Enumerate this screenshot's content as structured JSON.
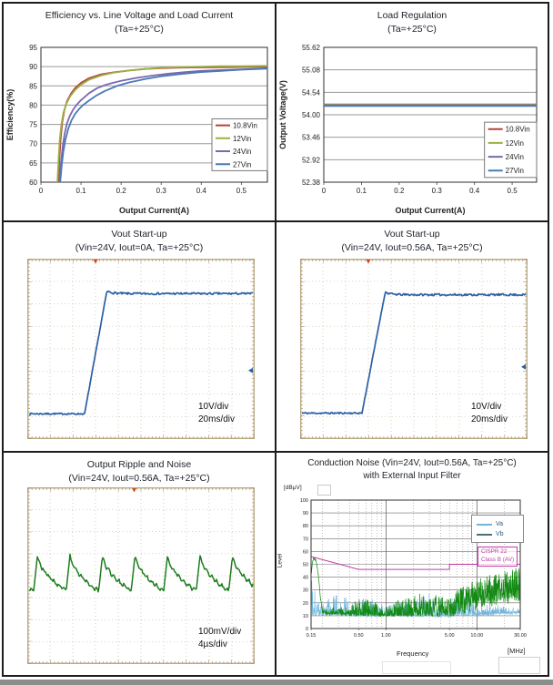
{
  "colors": {
    "red": "#b5443a",
    "olive": "#9cb043",
    "purple": "#7a68b0",
    "blue": "#4a7ab5",
    "scope_trace": "#2a5fa6",
    "ripple_green": "#1d7d1e",
    "va": "#6fb6da",
    "vb": "#138a13",
    "vb_swatch": "#4b7078",
    "limit": "#c23ba3",
    "grid": "#9a9a9a",
    "plot_border": "#2e2e2e",
    "scope_border": "#b6aa82",
    "scope_tick": "#a06a45",
    "scope_grid": "#ccc3a6",
    "trigger": "#d44a1a"
  },
  "chart_data": [
    {
      "type": "line",
      "title": "Efficiency vs. Line Voltage and Load Current",
      "subtitle": "(Ta=+25°C)",
      "xlabel": "Output Current(A)",
      "ylabel": "Efficiency(%)",
      "xlim": [
        0,
        0.565
      ],
      "ylim": [
        60,
        95
      ],
      "xticks": [
        0,
        0.1,
        0.2,
        0.3,
        0.4,
        0.5
      ],
      "xtick_labels": [
        "0",
        "0.1",
        "0.2",
        "0.3",
        "0.4",
        "0.5"
      ],
      "yticks": [
        60,
        65,
        70,
        75,
        80,
        85,
        90,
        95
      ],
      "ytick_labels": [
        "60",
        "65",
        "70",
        "75",
        "80",
        "85",
        "90",
        "95"
      ],
      "margins": {
        "l": 41,
        "r": 8,
        "t": 11,
        "b": 39
      },
      "legend_box": {
        "x": 0.755,
        "y": 0.53,
        "w": 0.245,
        "h": 0.385
      },
      "series": [
        {
          "name": "10.8Vin",
          "color_key": "red",
          "points": [
            [
              0.043,
              60
            ],
            [
              0.046,
              66
            ],
            [
              0.049,
              71
            ],
            [
              0.053,
              75.5
            ],
            [
              0.058,
              78.5
            ],
            [
              0.065,
              81
            ],
            [
              0.075,
              83
            ],
            [
              0.085,
              84.4
            ],
            [
              0.1,
              85.8
            ],
            [
              0.12,
              87
            ],
            [
              0.15,
              88
            ],
            [
              0.18,
              88.5
            ],
            [
              0.22,
              89
            ],
            [
              0.26,
              89.4
            ],
            [
              0.3,
              89.6
            ],
            [
              0.35,
              89.75
            ],
            [
              0.4,
              89.8
            ],
            [
              0.45,
              89.85
            ],
            [
              0.5,
              89.9
            ],
            [
              0.565,
              90
            ]
          ]
        },
        {
          "name": "12Vin",
          "color_key": "olive",
          "points": [
            [
              0.041,
              60
            ],
            [
              0.044,
              66
            ],
            [
              0.047,
              71
            ],
            [
              0.051,
              75
            ],
            [
              0.056,
              78
            ],
            [
              0.063,
              80.3
            ],
            [
              0.073,
              82.3
            ],
            [
              0.085,
              83.9
            ],
            [
              0.1,
              85.3
            ],
            [
              0.12,
              86.6
            ],
            [
              0.15,
              87.7
            ],
            [
              0.18,
              88.4
            ],
            [
              0.22,
              89
            ],
            [
              0.26,
              89.4
            ],
            [
              0.3,
              89.7
            ],
            [
              0.35,
              89.9
            ],
            [
              0.4,
              90
            ],
            [
              0.45,
              90.1
            ],
            [
              0.5,
              90.1
            ],
            [
              0.565,
              90.2
            ]
          ]
        },
        {
          "name": "24Vin",
          "color_key": "purple",
          "points": [
            [
              0.046,
              60
            ],
            [
              0.05,
              65
            ],
            [
              0.054,
              69
            ],
            [
              0.059,
              72.5
            ],
            [
              0.065,
              75.2
            ],
            [
              0.072,
              77.2
            ],
            [
              0.08,
              78.8
            ],
            [
              0.09,
              80.2
            ],
            [
              0.1,
              81.3
            ],
            [
              0.12,
              83.1
            ],
            [
              0.14,
              84.4
            ],
            [
              0.16,
              85.2
            ],
            [
              0.18,
              85.8
            ],
            [
              0.2,
              86.3
            ],
            [
              0.24,
              87.1
            ],
            [
              0.28,
              87.7
            ],
            [
              0.32,
              88.2
            ],
            [
              0.36,
              88.6
            ],
            [
              0.4,
              88.9
            ],
            [
              0.45,
              89.1
            ],
            [
              0.5,
              89.3
            ],
            [
              0.565,
              89.6
            ]
          ]
        },
        {
          "name": "27Vin",
          "color_key": "blue",
          "points": [
            [
              0.048,
              60
            ],
            [
              0.052,
              64.5
            ],
            [
              0.056,
              68
            ],
            [
              0.061,
              71
            ],
            [
              0.068,
              73.8
            ],
            [
              0.076,
              76
            ],
            [
              0.085,
              77.7
            ],
            [
              0.095,
              79
            ],
            [
              0.105,
              80
            ],
            [
              0.12,
              81.2
            ],
            [
              0.14,
              82.6
            ],
            [
              0.16,
              83.7
            ],
            [
              0.19,
              85
            ],
            [
              0.22,
              85.9
            ],
            [
              0.26,
              86.8
            ],
            [
              0.3,
              87.5
            ],
            [
              0.35,
              88.1
            ],
            [
              0.4,
              88.6
            ],
            [
              0.45,
              88.9
            ],
            [
              0.5,
              89.2
            ],
            [
              0.565,
              89.5
            ]
          ]
        }
      ]
    },
    {
      "type": "line",
      "title": "Load Regulation",
      "subtitle": "(Ta=+25°C)",
      "xlabel": "Output Current(A)",
      "ylabel": "Output Voltage(V)",
      "xlim": [
        0,
        0.565
      ],
      "ylim": [
        52.38,
        55.62
      ],
      "xticks": [
        0,
        0.1,
        0.2,
        0.3,
        0.4,
        0.5
      ],
      "xtick_labels": [
        "0",
        "0.1",
        "0.2",
        "0.3",
        "0.4",
        "0.5"
      ],
      "yticks": [
        52.38,
        52.92,
        53.46,
        54.0,
        54.54,
        55.08,
        55.62
      ],
      "ytick_labels": [
        "52.38",
        "52.92",
        "53.46",
        "54.00",
        "54.54",
        "55.08",
        "55.62"
      ],
      "margins": {
        "l": 52,
        "r": 12,
        "t": 11,
        "b": 39
      },
      "legend_box": {
        "x": 0.755,
        "y": 0.555,
        "w": 0.245,
        "h": 0.41
      },
      "series": [
        {
          "name": "10.8Vin",
          "color_key": "red",
          "points": [
            [
              0,
              54.25
            ],
            [
              0.565,
              54.25
            ]
          ]
        },
        {
          "name": "12Vin",
          "color_key": "olive",
          "points": [
            [
              0,
              54.24
            ],
            [
              0.565,
              54.24
            ]
          ]
        },
        {
          "name": "24Vin",
          "color_key": "purple",
          "points": [
            [
              0,
              54.23
            ],
            [
              0.565,
              54.23
            ]
          ]
        },
        {
          "name": "27Vin",
          "color_key": "blue",
          "points": [
            [
              0,
              54.21
            ],
            [
              0.565,
              54.21
            ]
          ]
        }
      ]
    },
    {
      "type": "scope",
      "title": "Vout Start-up",
      "subtitle": "(Vin=24V, Iout=0A, Ta=+25°C)",
      "v_scale": "10V/div",
      "t_scale": "20ms/div",
      "x_divs": 10,
      "y_divs": 8,
      "trigger_frac": 0.3,
      "right_marker_frac": 0.62,
      "seed": 7,
      "trace": {
        "kind": "step",
        "color_key": "scope_trace",
        "baseline_div": 1.12,
        "top_div": 6.45,
        "rise_start_div": 2.52,
        "rise_end_div": 3.48,
        "low_level_V": 0,
        "high_level_V": 54
      }
    },
    {
      "type": "scope",
      "title": "Vout Start-up",
      "subtitle": "(Vin=24V, Iout=0.56A, Ta=+25°C)",
      "v_scale": "10V/div",
      "t_scale": "20ms/div",
      "x_divs": 10,
      "y_divs": 8,
      "trigger_frac": 0.3,
      "right_marker_frac": 0.6,
      "seed": 11,
      "trace": {
        "kind": "step",
        "color_key": "scope_trace",
        "baseline_div": 1.15,
        "top_div": 6.4,
        "rise_start_div": 2.72,
        "rise_end_div": 3.72,
        "low_level_V": 0,
        "high_level_V": 54
      }
    },
    {
      "type": "scope",
      "title": "Output Ripple and Noise",
      "subtitle": "(Vin=24V, Iout=0.56A, Ta=+25°C)",
      "v_scale": "100mV/div",
      "t_scale": "4µs/div",
      "x_divs": 10,
      "y_divs": 8,
      "trigger_frac": 0.47,
      "seed": 23,
      "trace": {
        "kind": "ripple",
        "color_key": "ripple_green",
        "peak_div": 4.95,
        "trough_div": 3.3,
        "period_div": 1.43,
        "first_peak_div": 0.45,
        "ripple_pp_mV": 165,
        "period_us": 5.7
      }
    },
    {
      "type": "spectrum",
      "title": "Conduction Noise (Vin=24V, Iout=0.56A, Ta=+25°C)",
      "subtitle": "with External Input Filter",
      "xlabel": "Frequency",
      "x_unit": "[MHz]",
      "ylabel": "Level",
      "y_unit": "[dBµV]",
      "xlim": [
        0.15,
        30
      ],
      "ylim": [
        0,
        100
      ],
      "xticks": [
        0.15,
        0.5,
        1,
        5,
        10,
        30
      ],
      "xtick_labels": [
        "0.15",
        "0.50",
        "1.00",
        "5.00",
        "10.00",
        "30.00"
      ],
      "x_minor": [
        0.2,
        0.3,
        0.4,
        0.5,
        0.6,
        0.7,
        0.8,
        0.9,
        2,
        3,
        4,
        5,
        6,
        7,
        8,
        9,
        20
      ],
      "x_major": [
        1,
        10
      ],
      "yticks": [
        0,
        10,
        20,
        30,
        40,
        50,
        60,
        70,
        80,
        90,
        100
      ],
      "series_legend": [
        {
          "name": "Va",
          "color_key": "va"
        },
        {
          "name": "Vb",
          "color_key": "vb_swatch"
        }
      ],
      "limit_label1": "CISPR 22",
      "limit_label2": "Class B (AV)",
      "limit_points": [
        [
          0.15,
          56
        ],
        [
          0.5,
          46
        ],
        [
          5,
          46
        ],
        [
          5.001,
          50
        ],
        [
          30,
          50
        ]
      ],
      "va_floor": [
        [
          0.15,
          11
        ],
        [
          0.5,
          10
        ],
        [
          5,
          9.5
        ],
        [
          30,
          12
        ]
      ],
      "va_peak": [
        [
          0.15,
          42
        ],
        [
          0.2,
          18
        ],
        [
          0.25,
          26
        ],
        [
          0.3,
          31
        ],
        [
          0.4,
          22
        ],
        [
          0.5,
          20
        ],
        [
          0.6,
          27
        ],
        [
          0.7,
          25
        ],
        [
          0.8,
          23
        ],
        [
          1,
          18
        ],
        [
          1.5,
          23
        ],
        [
          2,
          25
        ],
        [
          2.5,
          26
        ],
        [
          3,
          27
        ],
        [
          4,
          24
        ],
        [
          5,
          23
        ],
        [
          6,
          26
        ],
        [
          7,
          28
        ],
        [
          8,
          29
        ],
        [
          9,
          26
        ],
        [
          10,
          22
        ],
        [
          15,
          18
        ],
        [
          30,
          16
        ]
      ],
      "vb_floor": [
        [
          0.15,
          12
        ],
        [
          0.3,
          11
        ],
        [
          1,
          10
        ],
        [
          5,
          10
        ],
        [
          8,
          13
        ],
        [
          15,
          18
        ],
        [
          30,
          22
        ]
      ],
      "vb_peak": [
        [
          0.2,
          15
        ],
        [
          0.3,
          16
        ],
        [
          0.4,
          18
        ],
        [
          0.5,
          22
        ],
        [
          0.6,
          25
        ],
        [
          0.7,
          23
        ],
        [
          0.8,
          20
        ],
        [
          1,
          16
        ],
        [
          1.3,
          22
        ],
        [
          1.6,
          24
        ],
        [
          2,
          26
        ],
        [
          2.5,
          27
        ],
        [
          3,
          28
        ],
        [
          3.5,
          26
        ],
        [
          4,
          25
        ],
        [
          5,
          26
        ],
        [
          6,
          30
        ],
        [
          7,
          33
        ],
        [
          8,
          35
        ],
        [
          9,
          36
        ],
        [
          10,
          38
        ],
        [
          12,
          40
        ],
        [
          15,
          43
        ],
        [
          20,
          45
        ],
        [
          25,
          46
        ],
        [
          30,
          48
        ]
      ],
      "vb_left_peak": [
        [
          0.15,
          40
        ],
        [
          0.155,
          52
        ],
        [
          0.16,
          55
        ],
        [
          0.17,
          53
        ],
        [
          0.18,
          42
        ],
        [
          0.19,
          24
        ],
        [
          0.2,
          14
        ]
      ],
      "seed_va": 101,
      "seed_vb": 202
    }
  ]
}
